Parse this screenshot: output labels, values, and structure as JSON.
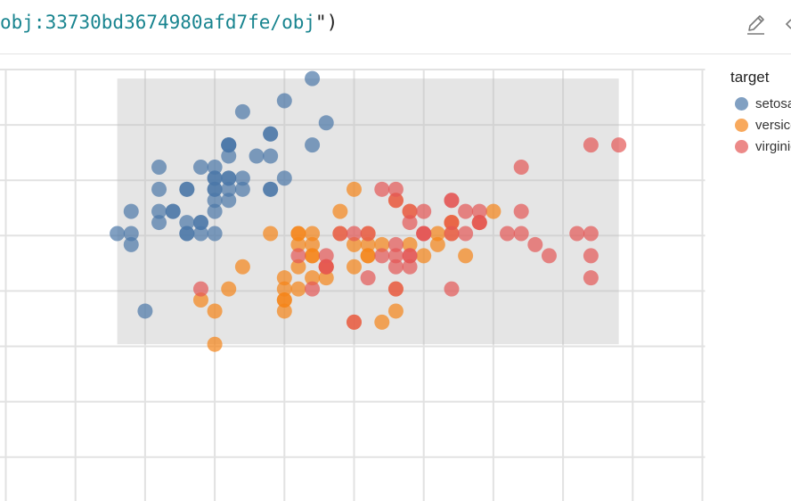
{
  "header": {
    "code_obj": "obj:33730bd3674980afd7fe/obj",
    "code_tail": "\")",
    "edit_icon": "pencil-icon",
    "more_icon": "overflow-icon"
  },
  "legend": {
    "title": "target",
    "items": [
      {
        "label": "setosa",
        "color": "#4c78a8"
      },
      {
        "label": "versicolor",
        "color": "#f58518"
      },
      {
        "label": "virginica",
        "color": "#e45756"
      }
    ]
  },
  "chart_data": {
    "type": "scatter",
    "title": "",
    "xlabel": "",
    "ylabel": "",
    "grid": true,
    "legend_title": "target",
    "legend_position": "right",
    "highlight_box": {
      "x": [
        4.3,
        7.9
      ],
      "y": [
        2.0,
        4.4
      ]
    },
    "series": [
      {
        "name": "setosa",
        "color": "#4c78a8",
        "x": [
          5.1,
          4.9,
          4.7,
          4.6,
          5.0,
          5.4,
          4.6,
          5.0,
          4.4,
          4.9,
          5.4,
          4.8,
          4.8,
          4.3,
          5.8,
          5.7,
          5.4,
          5.1,
          5.7,
          5.1,
          5.4,
          5.1,
          4.6,
          5.1,
          4.8,
          5.0,
          5.0,
          5.2,
          5.2,
          4.7,
          4.8,
          5.4,
          5.2,
          5.5,
          4.9,
          5.0,
          5.5,
          4.9,
          4.4,
          5.1,
          5.0,
          4.5,
          4.4,
          5.0,
          5.1,
          4.8,
          5.1,
          4.6,
          5.3,
          5.0
        ],
        "y": [
          3.5,
          3.0,
          3.2,
          3.1,
          3.6,
          3.9,
          3.4,
          3.4,
          2.9,
          3.1,
          3.7,
          3.4,
          3.0,
          3.0,
          4.0,
          4.4,
          3.9,
          3.5,
          3.8,
          3.8,
          3.4,
          3.7,
          3.6,
          3.3,
          3.4,
          3.0,
          3.4,
          3.5,
          3.4,
          3.2,
          3.1,
          3.4,
          4.1,
          4.2,
          3.1,
          3.2,
          3.5,
          3.6,
          3.0,
          3.4,
          3.5,
          2.3,
          3.2,
          3.5,
          3.8,
          3.0,
          3.8,
          3.2,
          3.7,
          3.3
        ]
      },
      {
        "name": "versicolor",
        "color": "#f58518",
        "x": [
          7.0,
          6.4,
          6.9,
          5.5,
          6.5,
          5.7,
          6.3,
          4.9,
          6.6,
          5.2,
          5.0,
          5.9,
          6.0,
          6.1,
          5.6,
          6.7,
          5.6,
          5.8,
          6.2,
          5.6,
          5.9,
          6.1,
          6.3,
          6.1,
          6.4,
          6.6,
          6.8,
          6.7,
          6.0,
          5.7,
          5.5,
          5.5,
          5.8,
          6.0,
          5.4,
          6.0,
          6.7,
          6.3,
          5.6,
          5.5,
          5.5,
          6.1,
          5.8,
          5.0,
          5.6,
          5.7,
          5.7,
          6.2,
          5.1,
          5.7
        ],
        "y": [
          3.2,
          3.2,
          3.1,
          2.3,
          2.8,
          2.8,
          3.3,
          2.4,
          2.9,
          2.7,
          2.0,
          3.0,
          2.2,
          2.9,
          2.9,
          3.1,
          3.0,
          2.7,
          2.2,
          2.5,
          3.2,
          2.8,
          2.5,
          2.8,
          2.9,
          3.0,
          2.8,
          3.0,
          2.9,
          2.6,
          2.4,
          2.4,
          2.7,
          2.7,
          3.0,
          3.4,
          3.1,
          2.3,
          3.0,
          2.5,
          2.6,
          3.0,
          2.6,
          2.3,
          2.7,
          3.0,
          2.9,
          2.9,
          2.5,
          2.8
        ]
      },
      {
        "name": "virginica",
        "color": "#e45756",
        "x": [
          6.3,
          5.8,
          7.1,
          6.3,
          6.5,
          7.6,
          4.9,
          7.3,
          6.7,
          7.2,
          6.5,
          6.4,
          6.8,
          5.7,
          5.8,
          6.4,
          6.5,
          7.7,
          7.7,
          6.0,
          6.9,
          5.6,
          7.7,
          6.3,
          6.7,
          7.2,
          6.2,
          6.1,
          6.4,
          7.2,
          7.4,
          7.9,
          6.4,
          6.3,
          6.1,
          7.7,
          6.3,
          6.4,
          6.0,
          6.9,
          6.7,
          6.9,
          5.8,
          6.8,
          6.7,
          6.7,
          6.3,
          6.5,
          6.2,
          5.9
        ],
        "y": [
          3.3,
          2.7,
          3.0,
          2.9,
          3.0,
          3.0,
          2.5,
          2.9,
          2.5,
          3.6,
          3.2,
          2.7,
          3.0,
          2.5,
          2.8,
          3.2,
          3.0,
          3.8,
          2.6,
          2.2,
          3.2,
          2.8,
          2.8,
          2.7,
          3.3,
          3.2,
          2.8,
          3.0,
          2.8,
          3.0,
          2.8,
          3.8,
          2.8,
          2.8,
          2.6,
          3.0,
          3.4,
          3.1,
          3.0,
          3.1,
          3.1,
          3.1,
          2.7,
          3.2,
          3.3,
          3.0,
          2.5,
          3.0,
          3.4,
          3.0
        ]
      }
    ]
  }
}
